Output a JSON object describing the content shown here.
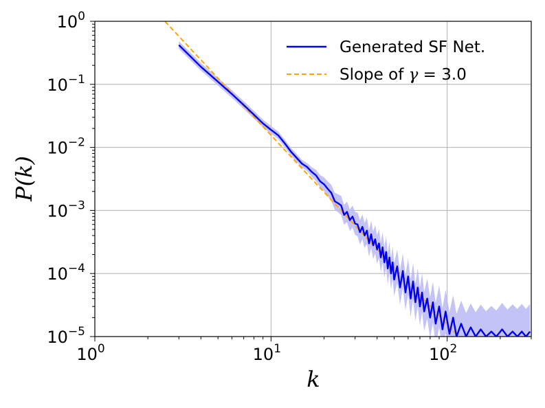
{
  "chart_data": {
    "type": "line",
    "title": "",
    "xlabel": "k",
    "ylabel": "P(k)",
    "xscale": "log",
    "yscale": "log",
    "xlim": [
      1,
      300
    ],
    "ylim": [
      1e-05,
      1
    ],
    "grid": true,
    "x_tick_labels": [
      {
        "value": 1,
        "base": "10",
        "exp": "0"
      },
      {
        "value": 10,
        "base": "10",
        "exp": "1"
      },
      {
        "value": 100,
        "base": "10",
        "exp": "2"
      }
    ],
    "y_tick_labels": [
      {
        "value": 1,
        "base": "10",
        "exp": "0"
      },
      {
        "value": 0.1,
        "base": "10",
        "exp": "−1"
      },
      {
        "value": 0.01,
        "base": "10",
        "exp": "−2"
      },
      {
        "value": 0.001,
        "base": "10",
        "exp": "−3"
      },
      {
        "value": 0.0001,
        "base": "10",
        "exp": "−4"
      },
      {
        "value": 1e-05,
        "base": "10",
        "exp": "−5"
      }
    ],
    "legend_position": "top-right",
    "series": [
      {
        "name": "Generated SF Net.",
        "style": "solid",
        "color": "#0000ee",
        "band_color": "#b8b8f5",
        "points": [
          [
            3,
            0.42
          ],
          [
            4,
            0.19
          ],
          [
            5,
            0.11
          ],
          [
            6,
            0.07
          ],
          [
            7,
            0.047
          ],
          [
            8,
            0.033
          ],
          [
            9,
            0.024
          ],
          [
            10,
            0.019
          ],
          [
            11,
            0.0155
          ],
          [
            12,
            0.0115
          ],
          [
            13,
            0.0085
          ],
          [
            14,
            0.0068
          ],
          [
            15,
            0.0055
          ],
          [
            16,
            0.0049
          ],
          [
            17,
            0.0041
          ],
          [
            18,
            0.0036
          ],
          [
            19,
            0.0029
          ],
          [
            20,
            0.0026
          ],
          [
            21,
            0.0022
          ],
          [
            22,
            0.0019
          ],
          [
            23,
            0.0014
          ],
          [
            24,
            0.0013
          ],
          [
            25,
            0.0012
          ],
          [
            26,
            0.00085
          ],
          [
            27,
            0.00095
          ],
          [
            28,
            0.0007
          ],
          [
            29,
            0.0008
          ],
          [
            30,
            0.00062
          ],
          [
            31,
            0.0006
          ],
          [
            32,
            0.00045
          ],
          [
            33,
            0.00055
          ],
          [
            34,
            0.0004
          ],
          [
            35,
            0.00048
          ],
          [
            36,
            0.0003
          ],
          [
            37,
            0.00042
          ],
          [
            38,
            0.00028
          ],
          [
            39,
            0.00035
          ],
          [
            40,
            0.00024
          ],
          [
            41,
            0.0003
          ],
          [
            42,
            0.00018
          ],
          [
            43,
            0.00026
          ],
          [
            44,
            0.00015
          ],
          [
            45,
            0.00022
          ],
          [
            46,
            0.00012
          ],
          [
            47,
            0.00018
          ],
          [
            48,
            0.0001
          ],
          [
            49,
            0.00015
          ],
          [
            50,
            8e-05
          ],
          [
            52,
            0.00013
          ],
          [
            54,
            6e-05
          ],
          [
            56,
            0.00011
          ],
          [
            58,
            5e-05
          ],
          [
            60,
            9e-05
          ],
          [
            62,
            4e-05
          ],
          [
            64,
            7.5e-05
          ],
          [
            66,
            3.5e-05
          ],
          [
            68,
            6e-05
          ],
          [
            70,
            3e-05
          ],
          [
            72,
            5e-05
          ],
          [
            74,
            2.5e-05
          ],
          [
            77,
            4e-05
          ],
          [
            80,
            2e-05
          ],
          [
            83,
            3.5e-05
          ],
          [
            86,
            1.6e-05
          ],
          [
            90,
            3e-05
          ],
          [
            94,
            1.3e-05
          ],
          [
            98,
            2.5e-05
          ],
          [
            103,
            1.1e-05
          ],
          [
            108,
            2e-05
          ],
          [
            113,
            1e-05
          ],
          [
            120,
            1.6e-05
          ],
          [
            128,
            1e-05
          ],
          [
            136,
            1.4e-05
          ],
          [
            145,
            1e-05
          ],
          [
            155,
            1.3e-05
          ],
          [
            166,
            1e-05
          ],
          [
            178,
            1.2e-05
          ],
          [
            190,
            1e-05
          ],
          [
            205,
            1.3e-05
          ],
          [
            220,
            1e-05
          ],
          [
            235,
            1.2e-05
          ],
          [
            250,
            1e-05
          ],
          [
            265,
            1.2e-05
          ],
          [
            280,
            1e-05
          ],
          [
            295,
            1.2e-05
          ]
        ]
      },
      {
        "name": "Slope of γ = 3.0",
        "legend_prefix": "Slope of ",
        "legend_symbol": "γ",
        "legend_suffix": " = 3.0",
        "style": "dashed",
        "color": "#ffa500",
        "points": [
          [
            2.5,
            1.0
          ],
          [
            118,
            9.5e-06
          ]
        ]
      }
    ]
  }
}
